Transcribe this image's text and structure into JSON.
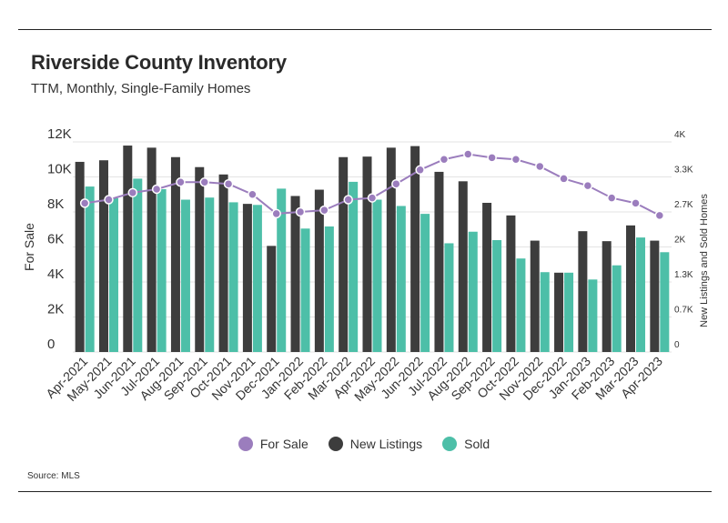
{
  "header": {
    "title": "Riverside County Inventory",
    "subtitle": "TTM, Monthly, Single-Family Homes"
  },
  "footer": {
    "source": "Source:  MLS"
  },
  "colors": {
    "for_sale": "#9b7dbd",
    "new_listings": "#3d3d3d",
    "sold": "#4dbfa8"
  },
  "legend": [
    {
      "label": "For Sale",
      "color": "#9b7dbd"
    },
    {
      "label": "New Listings",
      "color": "#3d3d3d"
    },
    {
      "label": "Sold",
      "color": "#4dbfa8"
    }
  ],
  "chart_data": {
    "type": "bar",
    "categories": [
      "Apr-2021",
      "May-2021",
      "Jun-2021",
      "Jul-2021",
      "Aug-2021",
      "Sep-2021",
      "Oct-2021",
      "Nov-2021",
      "Dec-2021",
      "Jan-2022",
      "Feb-2022",
      "Mar-2022",
      "Apr-2022",
      "May-2022",
      "Jun-2022",
      "Jul-2022",
      "Aug-2022",
      "Sep-2022",
      "Oct-2022",
      "Nov-2022",
      "Dec-2022",
      "Jan-2023",
      "Feb-2023",
      "Mar-2023",
      "Apr-2023"
    ],
    "ylabel": "For Sale",
    "y2label": "New Listings and Sold Homes",
    "yticks": [
      "0",
      "2K",
      "4K",
      "6K",
      "8K",
      "10K",
      "12K"
    ],
    "ylim": [
      0,
      12000
    ],
    "y2ticks": [
      "0",
      "0.7K",
      "1.3K",
      "2K",
      "2.7K",
      "3.3K",
      "4K"
    ],
    "y2lim": [
      0,
      4000
    ],
    "grid": true,
    "legend_position": "bottom",
    "series": [
      {
        "name": "For Sale",
        "type": "line",
        "axis": "left",
        "values": [
          8500,
          8700,
          9100,
          9300,
          9700,
          9700,
          9600,
          9000,
          7900,
          8000,
          8100,
          8700,
          8800,
          9600,
          10400,
          11000,
          11300,
          11100,
          11000,
          10600,
          9900,
          9500,
          8800,
          8500,
          7800
        ]
      },
      {
        "name": "New Listings",
        "type": "bar",
        "axis": "right",
        "values": [
          3620,
          3650,
          3930,
          3890,
          3710,
          3520,
          3380,
          2820,
          2020,
          2970,
          3090,
          3710,
          3720,
          3890,
          3920,
          3430,
          3250,
          2840,
          2600,
          2120,
          1510,
          2300,
          2110,
          2410,
          2120
        ]
      },
      {
        "name": "Sold",
        "type": "bar",
        "axis": "right",
        "values": [
          3150,
          2930,
          3300,
          3100,
          2900,
          2940,
          2850,
          2800,
          3110,
          2350,
          2390,
          3240,
          2900,
          2780,
          2630,
          2070,
          2290,
          2130,
          1780,
          1520,
          1510,
          1380,
          1650,
          2180,
          1900
        ]
      }
    ]
  }
}
